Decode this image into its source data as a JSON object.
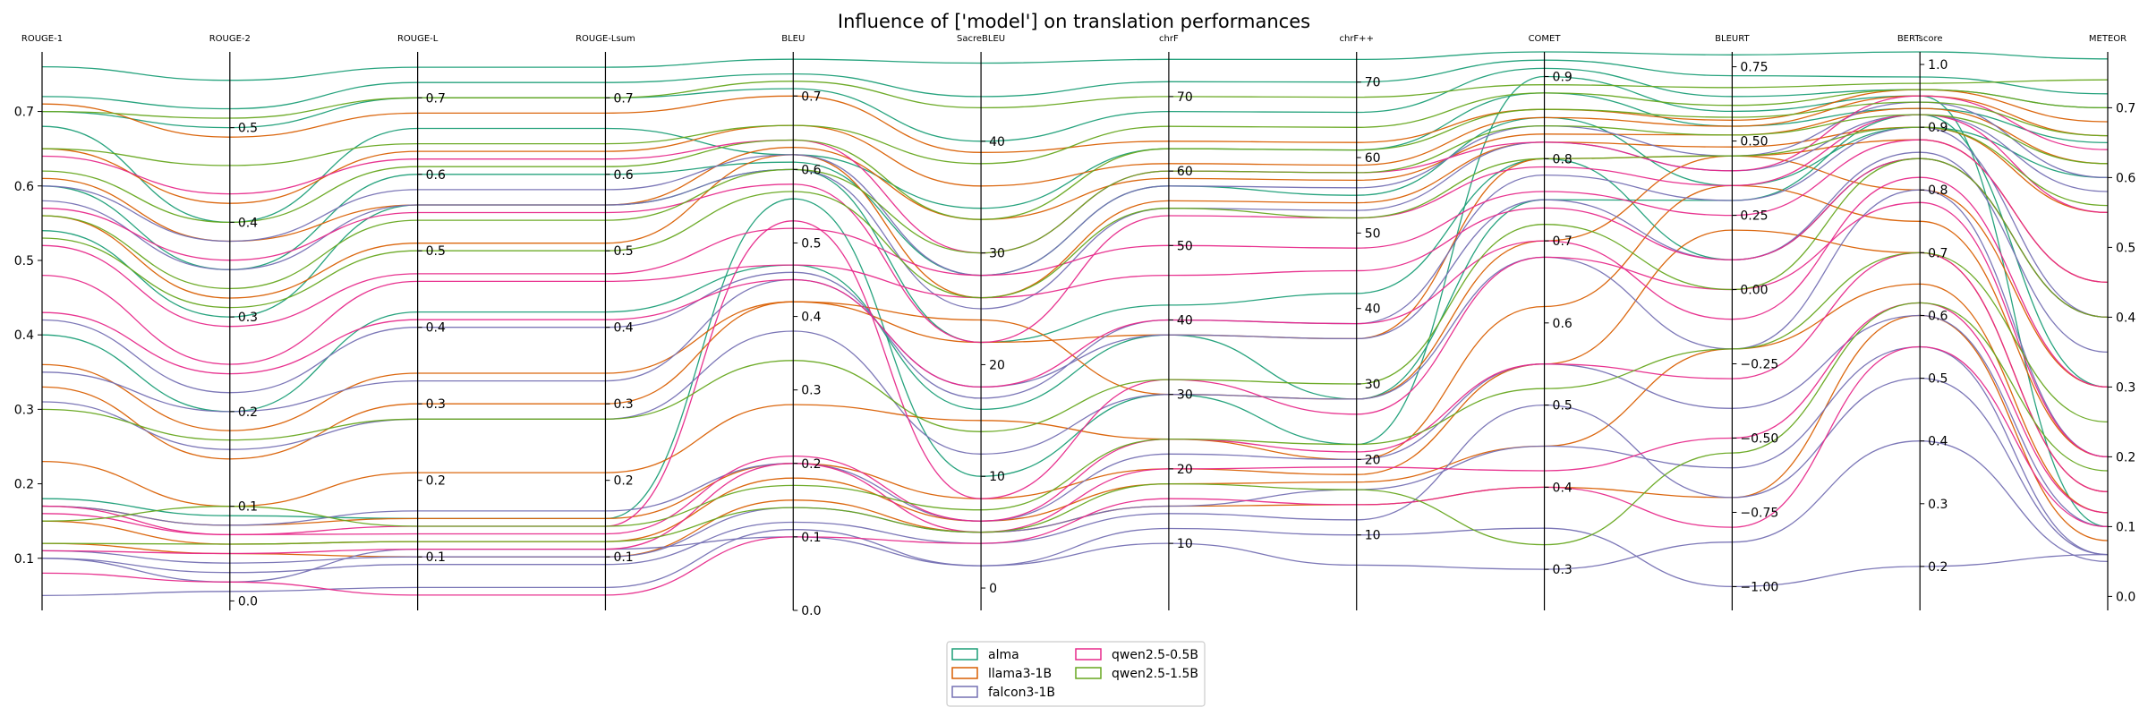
{
  "chart_data": {
    "type": "parallel-coordinates",
    "title": "Influence of ['model'] on translation performances",
    "axes": [
      {
        "name": "ROUGE-1",
        "range": [
          0.03,
          0.78
        ],
        "ticks": [
          {
            "v": 0.1,
            "t": "0.1"
          },
          {
            "v": 0.2,
            "t": "0.2"
          },
          {
            "v": 0.3,
            "t": "0.3"
          },
          {
            "v": 0.4,
            "t": "0.4"
          },
          {
            "v": 0.5,
            "t": "0.5"
          },
          {
            "v": 0.6,
            "t": "0.6"
          },
          {
            "v": 0.7,
            "t": "0.7"
          }
        ],
        "side": "left"
      },
      {
        "name": "ROUGE-2",
        "range": [
          -0.01,
          0.58
        ],
        "ticks": [
          {
            "v": 0.0,
            "t": "0.0"
          },
          {
            "v": 0.1,
            "t": "0.1"
          },
          {
            "v": 0.2,
            "t": "0.2"
          },
          {
            "v": 0.3,
            "t": "0.3"
          },
          {
            "v": 0.4,
            "t": "0.4"
          },
          {
            "v": 0.5,
            "t": "0.5"
          }
        ],
        "side": "right"
      },
      {
        "name": "ROUGE-L",
        "range": [
          0.03,
          0.76
        ],
        "ticks": [
          {
            "v": 0.1,
            "t": "0.1"
          },
          {
            "v": 0.2,
            "t": "0.2"
          },
          {
            "v": 0.3,
            "t": "0.3"
          },
          {
            "v": 0.4,
            "t": "0.4"
          },
          {
            "v": 0.5,
            "t": "0.5"
          },
          {
            "v": 0.6,
            "t": "0.6"
          },
          {
            "v": 0.7,
            "t": "0.7"
          }
        ],
        "side": "right"
      },
      {
        "name": "ROUGE-Lsum",
        "range": [
          0.03,
          0.76
        ],
        "ticks": [
          {
            "v": 0.1,
            "t": "0.1"
          },
          {
            "v": 0.2,
            "t": "0.2"
          },
          {
            "v": 0.3,
            "t": "0.3"
          },
          {
            "v": 0.4,
            "t": "0.4"
          },
          {
            "v": 0.5,
            "t": "0.5"
          },
          {
            "v": 0.6,
            "t": "0.6"
          },
          {
            "v": 0.7,
            "t": "0.7"
          }
        ],
        "side": "right"
      },
      {
        "name": "BLEU",
        "range": [
          0.0,
          0.76
        ],
        "ticks": [
          {
            "v": 0.0,
            "t": "0.0"
          },
          {
            "v": 0.1,
            "t": "0.1"
          },
          {
            "v": 0.2,
            "t": "0.2"
          },
          {
            "v": 0.3,
            "t": "0.3"
          },
          {
            "v": 0.4,
            "t": "0.4"
          },
          {
            "v": 0.5,
            "t": "0.5"
          },
          {
            "v": 0.6,
            "t": "0.6"
          },
          {
            "v": 0.7,
            "t": "0.7"
          }
        ],
        "side": "right"
      },
      {
        "name": "SacreBLEU",
        "range": [
          -2.0,
          48.0
        ],
        "ticks": [
          {
            "v": 0,
            "t": "0"
          },
          {
            "v": 10,
            "t": "10"
          },
          {
            "v": 20,
            "t": "20"
          },
          {
            "v": 30,
            "t": "30"
          },
          {
            "v": 40,
            "t": "40"
          }
        ],
        "side": "right"
      },
      {
        "name": "chrF",
        "range": [
          1.0,
          76.0
        ],
        "ticks": [
          {
            "v": 10,
            "t": "10"
          },
          {
            "v": 20,
            "t": "20"
          },
          {
            "v": 30,
            "t": "30"
          },
          {
            "v": 40,
            "t": "40"
          },
          {
            "v": 50,
            "t": "50"
          },
          {
            "v": 60,
            "t": "60"
          },
          {
            "v": 70,
            "t": "70"
          }
        ],
        "side": "right"
      },
      {
        "name": "chrF++",
        "range": [
          0.0,
          74.0
        ],
        "ticks": [
          {
            "v": 10,
            "t": "10"
          },
          {
            "v": 20,
            "t": "20"
          },
          {
            "v": 30,
            "t": "30"
          },
          {
            "v": 40,
            "t": "40"
          },
          {
            "v": 50,
            "t": "50"
          },
          {
            "v": 60,
            "t": "60"
          },
          {
            "v": 70,
            "t": "70"
          }
        ],
        "side": "right"
      },
      {
        "name": "COMET",
        "range": [
          0.25,
          0.93
        ],
        "ticks": [
          {
            "v": 0.3,
            "t": "0.3"
          },
          {
            "v": 0.4,
            "t": "0.4"
          },
          {
            "v": 0.5,
            "t": "0.5"
          },
          {
            "v": 0.6,
            "t": "0.6"
          },
          {
            "v": 0.7,
            "t": "0.7"
          },
          {
            "v": 0.8,
            "t": "0.8"
          },
          {
            "v": 0.9,
            "t": "0.9"
          }
        ],
        "side": "right"
      },
      {
        "name": "BLEURT",
        "range": [
          -1.08,
          0.8
        ],
        "ticks": [
          {
            "v": -1.0,
            "t": "−1.00"
          },
          {
            "v": -0.75,
            "t": "−0.75"
          },
          {
            "v": -0.5,
            "t": "−0.50"
          },
          {
            "v": -0.25,
            "t": "−0.25"
          },
          {
            "v": 0.0,
            "t": "0.00"
          },
          {
            "v": 0.25,
            "t": "0.25"
          },
          {
            "v": 0.5,
            "t": "0.50"
          },
          {
            "v": 0.75,
            "t": "0.75"
          }
        ],
        "side": "right"
      },
      {
        "name": "BERTscore",
        "range": [
          0.13,
          1.02
        ],
        "ticks": [
          {
            "v": 0.2,
            "t": "0.2"
          },
          {
            "v": 0.3,
            "t": "0.3"
          },
          {
            "v": 0.4,
            "t": "0.4"
          },
          {
            "v": 0.5,
            "t": "0.5"
          },
          {
            "v": 0.6,
            "t": "0.6"
          },
          {
            "v": 0.7,
            "t": "0.7"
          },
          {
            "v": 0.8,
            "t": "0.8"
          },
          {
            "v": 0.9,
            "t": "0.9"
          },
          {
            "v": 1.0,
            "t": "1.0"
          }
        ],
        "side": "right"
      },
      {
        "name": "METEOR",
        "range": [
          -0.02,
          0.78
        ],
        "ticks": [
          {
            "v": 0.0,
            "t": "0.0"
          },
          {
            "v": 0.1,
            "t": "0.1"
          },
          {
            "v": 0.2,
            "t": "0.2"
          },
          {
            "v": 0.3,
            "t": "0.3"
          },
          {
            "v": 0.4,
            "t": "0.4"
          },
          {
            "v": 0.5,
            "t": "0.5"
          },
          {
            "v": 0.6,
            "t": "0.6"
          },
          {
            "v": 0.7,
            "t": "0.7"
          }
        ],
        "side": "right"
      }
    ],
    "series": [
      {
        "name": "alma",
        "color": "#1b9e77",
        "lines": [
          [
            0.76,
            0.55,
            0.74,
            0.74,
            0.75,
            47.0,
            75.0,
            73.0,
            0.93,
            0.79,
            1.02,
            0.77
          ],
          [
            0.72,
            0.52,
            0.72,
            0.72,
            0.73,
            44.0,
            72.0,
            70.0,
            0.92,
            0.72,
            0.98,
            0.72
          ],
          [
            0.7,
            0.5,
            0.7,
            0.7,
            0.71,
            40.0,
            68.0,
            66.0,
            0.91,
            0.65,
            0.96,
            0.7
          ],
          [
            0.68,
            0.4,
            0.66,
            0.66,
            0.62,
            34.0,
            63.0,
            61.0,
            0.88,
            0.55,
            0.93,
            0.65
          ],
          [
            0.6,
            0.35,
            0.6,
            0.6,
            0.61,
            28.0,
            58.0,
            55.0,
            0.85,
            0.35,
            0.9,
            0.6
          ],
          [
            0.54,
            0.3,
            0.56,
            0.56,
            0.6,
            22.0,
            42.0,
            42.0,
            0.8,
            0.1,
            0.85,
            0.4
          ],
          [
            0.4,
            0.2,
            0.42,
            0.42,
            0.47,
            16.0,
            38.0,
            28.0,
            0.75,
            0.3,
            0.92,
            0.3
          ],
          [
            0.18,
            0.09,
            0.15,
            0.15,
            0.56,
            10.0,
            30.0,
            22.0,
            0.9,
            0.6,
            0.95,
            0.1
          ]
        ]
      },
      {
        "name": "llama3-1B",
        "color": "#d95f02",
        "lines": [
          [
            0.71,
            0.49,
            0.68,
            0.68,
            0.7,
            39.0,
            64.0,
            62.0,
            0.86,
            0.57,
            0.96,
            0.68
          ],
          [
            0.65,
            0.42,
            0.63,
            0.63,
            0.66,
            36.0,
            61.0,
            59.0,
            0.85,
            0.55,
            0.95,
            0.66
          ],
          [
            0.61,
            0.38,
            0.56,
            0.56,
            0.63,
            33.0,
            59.0,
            57.0,
            0.83,
            0.52,
            0.93,
            0.62
          ],
          [
            0.56,
            0.32,
            0.51,
            0.51,
            0.62,
            26.0,
            56.0,
            54.0,
            0.82,
            0.48,
            0.9,
            0.55
          ],
          [
            0.36,
            0.18,
            0.34,
            0.34,
            0.42,
            22.0,
            38.0,
            36.0,
            0.8,
            0.45,
            0.88,
            0.45
          ],
          [
            0.33,
            0.15,
            0.3,
            0.3,
            0.42,
            24.0,
            30.0,
            28.0,
            0.7,
            0.45,
            0.8,
            0.3
          ],
          [
            0.23,
            0.1,
            0.21,
            0.21,
            0.28,
            15.0,
            24.0,
            20.0,
            0.62,
            0.35,
            0.75,
            0.2
          ],
          [
            0.17,
            0.08,
            0.15,
            0.15,
            0.2,
            8.0,
            20.0,
            18.0,
            0.55,
            0.2,
            0.7,
            0.15
          ],
          [
            0.15,
            0.06,
            0.12,
            0.12,
            0.18,
            6.0,
            18.0,
            17.0,
            0.45,
            -0.2,
            0.65,
            0.12
          ],
          [
            0.12,
            0.05,
            0.1,
            0.1,
            0.15,
            5.0,
            15.0,
            14.0,
            0.4,
            -0.7,
            0.6,
            0.08
          ]
        ]
      },
      {
        "name": "falcon3-1B",
        "color": "#7570b3",
        "lines": [
          [
            0.6,
            0.38,
            0.58,
            0.58,
            0.62,
            28.0,
            58.0,
            56.0,
            0.84,
            0.45,
            0.94,
            0.6
          ],
          [
            0.58,
            0.35,
            0.56,
            0.56,
            0.6,
            25.0,
            55.0,
            53.0,
            0.82,
            0.4,
            0.92,
            0.58
          ],
          [
            0.42,
            0.22,
            0.4,
            0.4,
            0.46,
            17.0,
            40.0,
            38.0,
            0.78,
            0.3,
            0.9,
            0.4
          ],
          [
            0.35,
            0.2,
            0.33,
            0.33,
            0.45,
            18.0,
            38.0,
            36.0,
            0.75,
            0.1,
            0.86,
            0.35
          ],
          [
            0.31,
            0.16,
            0.28,
            0.28,
            0.38,
            12.0,
            30.0,
            28.0,
            0.68,
            -0.2,
            0.8,
            0.2
          ],
          [
            0.17,
            0.08,
            0.16,
            0.16,
            0.2,
            6.0,
            22.0,
            20.0,
            0.55,
            -0.4,
            0.6,
            0.1
          ],
          [
            0.11,
            0.04,
            0.1,
            0.1,
            0.14,
            5.0,
            15.0,
            16.0,
            0.45,
            -0.6,
            0.55,
            0.06
          ],
          [
            0.1,
            0.03,
            0.09,
            0.09,
            0.12,
            4.0,
            14.0,
            12.0,
            0.5,
            -0.7,
            0.5,
            0.06
          ],
          [
            0.05,
            0.01,
            0.06,
            0.06,
            0.11,
            2.0,
            10.0,
            6.0,
            0.3,
            -0.85,
            0.4,
            0.05
          ],
          [
            0.1,
            0.02,
            0.11,
            0.11,
            0.1,
            2.0,
            12.0,
            10.0,
            0.35,
            -1.0,
            0.2,
            0.06
          ]
        ]
      },
      {
        "name": "qwen2.5-0.5B",
        "color": "#e7298a",
        "lines": [
          [
            0.64,
            0.43,
            0.62,
            0.62,
            0.64,
            30.0,
            60.0,
            58.0,
            0.82,
            0.4,
            0.95,
            0.64
          ],
          [
            0.57,
            0.36,
            0.55,
            0.55,
            0.58,
            22.0,
            54.0,
            52.0,
            0.79,
            0.35,
            0.92,
            0.55
          ],
          [
            0.52,
            0.29,
            0.47,
            0.47,
            0.52,
            28.0,
            50.0,
            48.0,
            0.76,
            0.25,
            0.88,
            0.45
          ],
          [
            0.48,
            0.25,
            0.46,
            0.46,
            0.47,
            26.0,
            46.0,
            45.0,
            0.74,
            0.1,
            0.85,
            0.4
          ],
          [
            0.43,
            0.24,
            0.41,
            0.41,
            0.45,
            18.0,
            40.0,
            38.0,
            0.7,
            -0.1,
            0.82,
            0.3
          ],
          [
            0.17,
            0.07,
            0.14,
            0.14,
            0.53,
            8.0,
            32.0,
            26.0,
            0.68,
            0.0,
            0.78,
            0.2
          ],
          [
            0.16,
            0.07,
            0.13,
            0.13,
            0.21,
            6.0,
            24.0,
            21.0,
            0.55,
            -0.3,
            0.7,
            0.15
          ],
          [
            0.11,
            0.05,
            0.11,
            0.11,
            0.2,
            5.0,
            20.0,
            19.0,
            0.42,
            -0.5,
            0.62,
            0.12
          ],
          [
            0.08,
            0.02,
            0.05,
            0.05,
            0.1,
            4.0,
            16.0,
            14.0,
            0.4,
            -0.8,
            0.55,
            0.1
          ]
        ]
      },
      {
        "name": "qwen2.5-1.5B",
        "color": "#66a61e",
        "lines": [
          [
            0.7,
            0.51,
            0.7,
            0.7,
            0.72,
            43.0,
            70.0,
            68.0,
            0.89,
            0.68,
            0.97,
            0.74
          ],
          [
            0.65,
            0.46,
            0.64,
            0.64,
            0.66,
            38.0,
            66.0,
            64.0,
            0.88,
            0.62,
            0.96,
            0.7
          ],
          [
            0.62,
            0.4,
            0.61,
            0.61,
            0.64,
            33.0,
            63.0,
            61.0,
            0.86,
            0.58,
            0.94,
            0.66
          ],
          [
            0.56,
            0.33,
            0.54,
            0.54,
            0.6,
            30.0,
            60.0,
            58.0,
            0.84,
            0.52,
            0.92,
            0.62
          ],
          [
            0.53,
            0.31,
            0.5,
            0.5,
            0.57,
            26.0,
            55.0,
            52.0,
            0.8,
            0.45,
            0.9,
            0.56
          ],
          [
            0.3,
            0.17,
            0.28,
            0.28,
            0.34,
            14.0,
            32.0,
            30.0,
            0.72,
            0.0,
            0.85,
            0.4
          ],
          [
            0.15,
            0.1,
            0.14,
            0.14,
            0.17,
            7.0,
            24.0,
            22.0,
            0.52,
            -0.2,
            0.7,
            0.25
          ],
          [
            0.12,
            0.06,
            0.12,
            0.12,
            0.14,
            5.0,
            18.0,
            16.0,
            0.33,
            -0.55,
            0.62,
            0.18
          ]
        ]
      }
    ],
    "legend": {
      "position": "bottom-center",
      "columns": 2,
      "order": [
        "alma",
        "llama3-1B",
        "falcon3-1B",
        "qwen2.5-0.5B",
        "qwen2.5-1.5B"
      ]
    },
    "grid": false
  }
}
